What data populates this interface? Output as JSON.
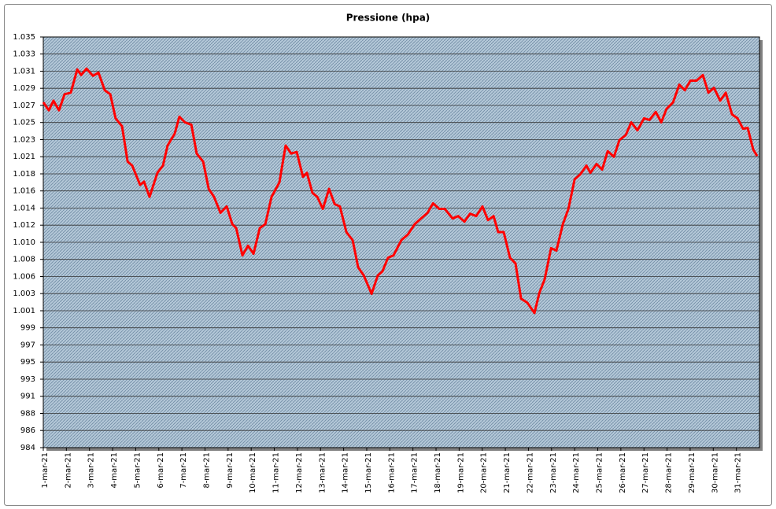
{
  "chart_data": {
    "type": "line",
    "title": "Pressione (hpa)",
    "xlim": [
      0,
      31
    ],
    "xticks": [
      {
        "value": 0,
        "label": "1-mar-21"
      },
      {
        "value": 1,
        "label": "2-mar-21"
      },
      {
        "value": 2,
        "label": "3-mar-21"
      },
      {
        "value": 3,
        "label": "4-mar-21"
      },
      {
        "value": 4,
        "label": "5-mar-21"
      },
      {
        "value": 5,
        "label": "6-mar-21"
      },
      {
        "value": 6,
        "label": "7-mar-21"
      },
      {
        "value": 7,
        "label": "8-mar-21"
      },
      {
        "value": 8,
        "label": "9-mar-21"
      },
      {
        "value": 9,
        "label": "10-mar-21"
      },
      {
        "value": 10,
        "label": "11-mar-21"
      },
      {
        "value": 11,
        "label": "12-mar-21"
      },
      {
        "value": 12,
        "label": "13-mar-21"
      },
      {
        "value": 13,
        "label": "14-mar-21"
      },
      {
        "value": 14,
        "label": "15-mar-21"
      },
      {
        "value": 15,
        "label": "16-mar-21"
      },
      {
        "value": 16,
        "label": "17-mar-21"
      },
      {
        "value": 17,
        "label": "18-mar-21"
      },
      {
        "value": 18,
        "label": "19-mar-21"
      },
      {
        "value": 19,
        "label": "20-mar-21"
      },
      {
        "value": 20,
        "label": "21-mar-21"
      },
      {
        "value": 21,
        "label": "22-mar-21"
      },
      {
        "value": 22,
        "label": "23-mar-21"
      },
      {
        "value": 23,
        "label": "24-mar-21"
      },
      {
        "value": 24,
        "label": "25-mar-21"
      },
      {
        "value": 25,
        "label": "26-mar-21"
      },
      {
        "value": 26,
        "label": "27-mar-21"
      },
      {
        "value": 27,
        "label": "28-mar-21"
      },
      {
        "value": 28,
        "label": "29-mar-21"
      },
      {
        "value": 29,
        "label": "30-mar-21"
      },
      {
        "value": 30,
        "label": "31-mar-21"
      }
    ],
    "ylim": [
      984.21,
      1035.45
    ],
    "yticks": [
      {
        "value": 984.21,
        "label": "984"
      },
      {
        "value": 986.35,
        "label": "986"
      },
      {
        "value": 988.48,
        "label": "988"
      },
      {
        "value": 990.62,
        "label": "991"
      },
      {
        "value": 992.75,
        "label": "993"
      },
      {
        "value": 994.89,
        "label": "995"
      },
      {
        "value": 997.02,
        "label": "997"
      },
      {
        "value": 999.16,
        "label": "999"
      },
      {
        "value": 1001.29,
        "label": "1.001"
      },
      {
        "value": 1003.43,
        "label": "1.003"
      },
      {
        "value": 1005.56,
        "label": "1.006"
      },
      {
        "value": 1007.7,
        "label": "1.008"
      },
      {
        "value": 1009.83,
        "label": "1.010"
      },
      {
        "value": 1011.97,
        "label": "1.012"
      },
      {
        "value": 1014.1,
        "label": "1.014"
      },
      {
        "value": 1016.24,
        "label": "1.016"
      },
      {
        "value": 1018.37,
        "label": "1.018"
      },
      {
        "value": 1020.51,
        "label": "1.021"
      },
      {
        "value": 1022.64,
        "label": "1.023"
      },
      {
        "value": 1024.78,
        "label": "1.025"
      },
      {
        "value": 1026.91,
        "label": "1.027"
      },
      {
        "value": 1029.05,
        "label": "1.029"
      },
      {
        "value": 1031.18,
        "label": "1.031"
      },
      {
        "value": 1033.32,
        "label": "1.033"
      },
      {
        "value": 1035.45,
        "label": "1.035"
      }
    ],
    "grid": true,
    "series": [
      {
        "color": "#ff0000",
        "x": [
          0,
          0.24,
          0.44,
          0.68,
          0.92,
          1.19,
          1.47,
          1.64,
          1.87,
          2.15,
          2.39,
          2.66,
          2.9,
          3.13,
          3.41,
          3.65,
          3.85,
          4.19,
          4.36,
          4.6,
          4.94,
          5.18,
          5.38,
          5.69,
          5.89,
          6.13,
          6.41,
          6.64,
          6.92,
          7.16,
          7.39,
          7.67,
          7.94,
          8.18,
          8.35,
          8.62,
          8.86,
          9.1,
          9.37,
          9.61,
          9.88,
          10.22,
          10.49,
          10.73,
          10.97,
          11.24,
          11.41,
          11.65,
          11.86,
          12.1,
          12.37,
          12.61,
          12.84,
          13.12,
          13.39,
          13.63,
          13.87,
          14.21,
          14.48,
          14.68,
          14.92,
          15.16,
          15.5,
          15.78,
          16.08,
          16.35,
          16.63,
          16.87,
          17.14,
          17.38,
          17.72,
          17.96,
          18.23,
          18.47,
          18.74,
          19.01,
          19.25,
          19.49,
          19.69,
          19.93,
          20.2,
          20.44,
          20.68,
          20.95,
          21.26,
          21.47,
          21.7,
          21.98,
          22.21,
          22.49,
          22.73,
          23,
          23.24,
          23.51,
          23.68,
          23.95,
          24.19,
          24.43,
          24.7,
          24.94,
          25.21,
          25.45,
          25.72,
          26,
          26.24,
          26.51,
          26.75,
          26.98,
          27.26,
          27.53,
          27.77,
          28.01,
          28.28,
          28.55,
          28.79,
          29.03,
          29.3,
          29.54,
          29.81,
          30.05,
          30.29,
          30.49,
          30.73,
          30.9
        ],
        "values": [
          1027.3,
          1026.3,
          1027.5,
          1026.3,
          1028.3,
          1028.5,
          1031.4,
          1030.7,
          1031.5,
          1030.6,
          1031.0,
          1028.8,
          1028.3,
          1025.3,
          1024.3,
          1019.9,
          1019.4,
          1017.0,
          1017.4,
          1015.5,
          1018.5,
          1019.4,
          1021.9,
          1023.4,
          1025.5,
          1024.8,
          1024.5,
          1020.9,
          1019.9,
          1016.5,
          1015.5,
          1013.5,
          1014.3,
          1012.1,
          1011.6,
          1008.2,
          1009.4,
          1008.4,
          1011.6,
          1012.1,
          1015.5,
          1017.3,
          1021.9,
          1020.9,
          1021.1,
          1018.0,
          1018.5,
          1016.0,
          1015.5,
          1014.0,
          1016.5,
          1014.6,
          1014.3,
          1011.1,
          1010.1,
          1006.7,
          1005.7,
          1003.4,
          1005.7,
          1006.2,
          1007.9,
          1008.2,
          1010.1,
          1010.8,
          1012.1,
          1012.8,
          1013.5,
          1014.7,
          1014.0,
          1014.0,
          1012.8,
          1013.1,
          1012.4,
          1013.4,
          1013.1,
          1014.3,
          1012.6,
          1013.1,
          1011.1,
          1011.1,
          1007.9,
          1007.2,
          1002.8,
          1002.3,
          1001.0,
          1003.5,
          1005.2,
          1009.1,
          1008.8,
          1012.1,
          1014.0,
          1017.7,
          1018.3,
          1019.4,
          1018.5,
          1019.6,
          1018.9,
          1021.2,
          1020.5,
          1022.6,
          1023.2,
          1024.8,
          1023.8,
          1025.3,
          1025.1,
          1026.1,
          1024.8,
          1026.5,
          1027.3,
          1029.5,
          1028.8,
          1030.0,
          1030.0,
          1030.7,
          1028.5,
          1029.1,
          1027.5,
          1028.5,
          1025.8,
          1025.3,
          1024.0,
          1024.1,
          1021.4,
          1020.6
        ]
      }
    ]
  }
}
